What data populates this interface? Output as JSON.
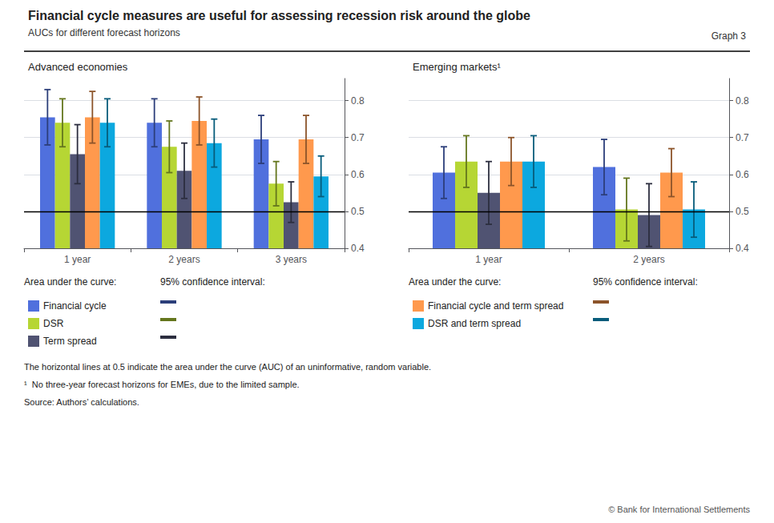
{
  "title": "Financial cycle measures are useful for assessing recession risk around the globe",
  "subtitle": "AUCs for different forecast horizons",
  "graph_label": "Graph 3",
  "legend_title": "Area under the curve:",
  "error_legend_title": "95% confidence interval:",
  "footnotes": [
    "The horizontal lines at 0.5 indicate the area under the curve (AUC) of an uninformative, random variable.",
    "¹  No three-year forecast horizons for EMEs, due to the limited sample.",
    "Source: Authors’ calculations."
  ],
  "copyright": "© Bank for International Settlements",
  "chart_data": [
    {
      "type": "bar",
      "title": "Advanced economies",
      "categories": [
        "1 year",
        "2 years",
        "3 years"
      ],
      "series": [
        {
          "name": "Financial cycle",
          "values": [
            0.755,
            0.74,
            0.695
          ],
          "error_low": [
            0.075,
            0.065,
            0.065
          ],
          "error_high": [
            0.075,
            0.065,
            0.065
          ]
        },
        {
          "name": "DSR",
          "values": [
            0.74,
            0.675,
            0.575
          ],
          "error_low": [
            0.065,
            0.07,
            0.06
          ],
          "error_high": [
            0.065,
            0.07,
            0.06
          ]
        },
        {
          "name": "Term spread",
          "values": [
            0.655,
            0.61,
            0.525
          ],
          "error_low": [
            0.08,
            0.075,
            0.055
          ],
          "error_high": [
            0.08,
            0.075,
            0.055
          ]
        },
        {
          "name": "Financial cycle and term spread",
          "values": [
            0.755,
            0.745,
            0.695
          ],
          "error_low": [
            0.07,
            0.065,
            0.065
          ],
          "error_high": [
            0.07,
            0.065,
            0.065
          ]
        },
        {
          "name": "DSR and term spread",
          "values": [
            0.74,
            0.685,
            0.595
          ],
          "error_low": [
            0.065,
            0.065,
            0.055
          ],
          "error_high": [
            0.065,
            0.065,
            0.055
          ]
        }
      ],
      "ylim": [
        0.4,
        0.86
      ],
      "yticks": [
        0.4,
        0.5,
        0.6,
        0.7,
        0.8
      ],
      "reference_line": 0.5,
      "grid": true
    },
    {
      "type": "bar",
      "title": "Emerging markets¹",
      "categories": [
        "1 year",
        "2 years"
      ],
      "series": [
        {
          "name": "Financial cycle",
          "values": [
            0.605,
            0.62
          ],
          "error_low": [
            0.07,
            0.075
          ],
          "error_high": [
            0.07,
            0.075
          ]
        },
        {
          "name": "DSR",
          "values": [
            0.635,
            0.505
          ],
          "error_low": [
            0.07,
            0.085
          ],
          "error_high": [
            0.07,
            0.085
          ]
        },
        {
          "name": "Term spread",
          "values": [
            0.55,
            0.49
          ],
          "error_low": [
            0.085,
            0.085
          ],
          "error_high": [
            0.085,
            0.085
          ]
        },
        {
          "name": "Financial cycle and term spread",
          "values": [
            0.635,
            0.605
          ],
          "error_low": [
            0.065,
            0.065
          ],
          "error_high": [
            0.065,
            0.065
          ]
        },
        {
          "name": "DSR and term spread",
          "values": [
            0.635,
            0.505
          ],
          "error_low": [
            0.07,
            0.075
          ],
          "error_high": [
            0.07,
            0.075
          ]
        }
      ],
      "ylim": [
        0.4,
        0.86
      ],
      "yticks": [
        0.4,
        0.5,
        0.6,
        0.7,
        0.8
      ],
      "reference_line": 0.5,
      "grid": true
    }
  ]
}
